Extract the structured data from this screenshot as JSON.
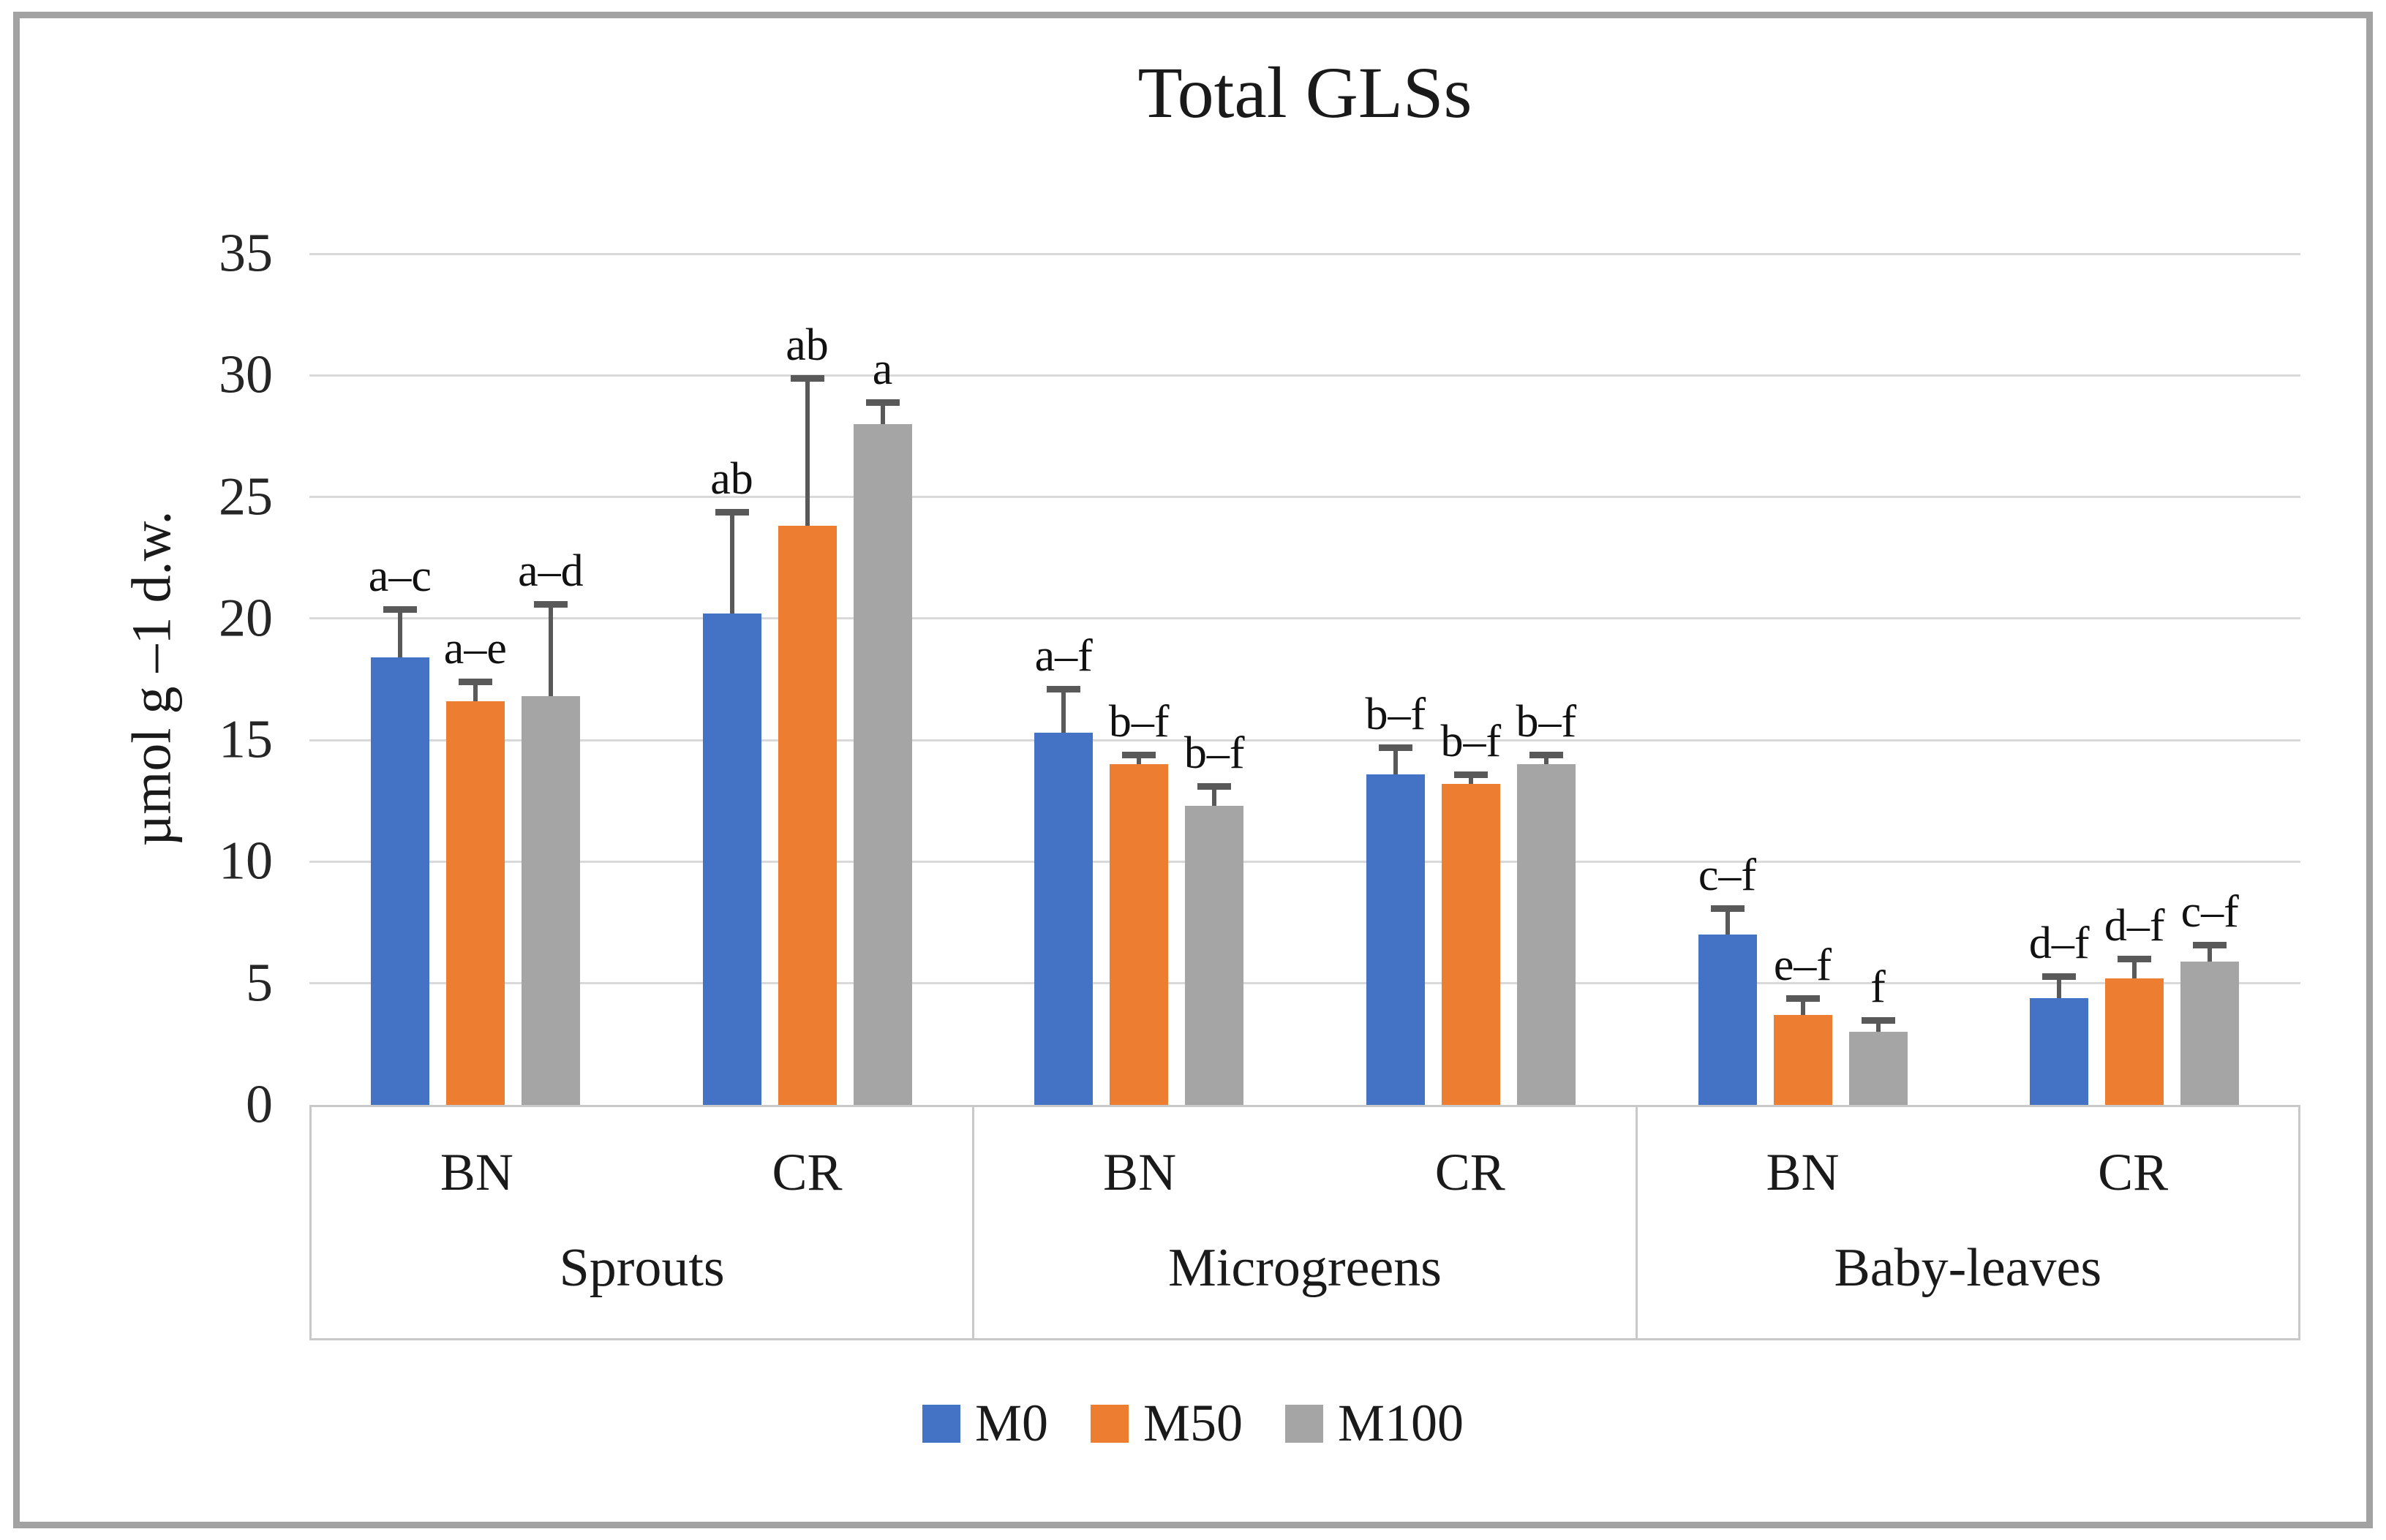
{
  "figure": {
    "frame_color": "#a2a2a2",
    "background": "#ffffff",
    "gridline_color": "#d9d9d9",
    "axis_box_color": "#c9c9c9",
    "error_bar_color": "#595959"
  },
  "chart_data": {
    "type": "bar",
    "title": "Total GLSs",
    "xlabel": "",
    "ylabel": "µmol g –1 d.w.",
    "ylim": [
      0,
      35
    ],
    "yticks": [
      0,
      5,
      10,
      15,
      20,
      25,
      30,
      35
    ],
    "grid": true,
    "legend_position": "bottom",
    "series": [
      {
        "name": "M0",
        "color": "#4472C4"
      },
      {
        "name": "M50",
        "color": "#ED7D31"
      },
      {
        "name": "M100",
        "color": "#A5A5A5"
      }
    ],
    "groups": [
      {
        "label": "Sprouts",
        "clusters": [
          {
            "label": "BN",
            "bars": [
              {
                "series": "M0",
                "value": 18.4,
                "error": 2.0,
                "letter": "a–c"
              },
              {
                "series": "M50",
                "value": 16.6,
                "error": 0.8,
                "letter": "a–e"
              },
              {
                "series": "M100",
                "value": 16.8,
                "error": 3.8,
                "letter": "a–d"
              }
            ]
          },
          {
            "label": "CR",
            "bars": [
              {
                "series": "M0",
                "value": 20.2,
                "error": 4.2,
                "letter": "ab"
              },
              {
                "series": "M50",
                "value": 23.8,
                "error": 6.1,
                "letter": "ab"
              },
              {
                "series": "M100",
                "value": 28.0,
                "error": 0.9,
                "letter": "a"
              }
            ]
          }
        ]
      },
      {
        "label": "Microgreens",
        "clusters": [
          {
            "label": "BN",
            "bars": [
              {
                "series": "M0",
                "value": 15.3,
                "error": 1.8,
                "letter": "a–f"
              },
              {
                "series": "M50",
                "value": 14.0,
                "error": 0.4,
                "letter": "b–f"
              },
              {
                "series": "M100",
                "value": 12.3,
                "error": 0.8,
                "letter": "b–f"
              }
            ]
          },
          {
            "label": "CR",
            "bars": [
              {
                "series": "M0",
                "value": 13.6,
                "error": 1.1,
                "letter": "b–f"
              },
              {
                "series": "M50",
                "value": 13.2,
                "error": 0.4,
                "letter": "b–f"
              },
              {
                "series": "M100",
                "value": 14.0,
                "error": 0.4,
                "letter": "b–f"
              }
            ]
          }
        ]
      },
      {
        "label": "Baby-leaves",
        "clusters": [
          {
            "label": "BN",
            "bars": [
              {
                "series": "M0",
                "value": 7.0,
                "error": 1.1,
                "letter": "c–f"
              },
              {
                "series": "M50",
                "value": 3.7,
                "error": 0.7,
                "letter": "e–f"
              },
              {
                "series": "M100",
                "value": 3.0,
                "error": 0.5,
                "letter": "f"
              }
            ]
          },
          {
            "label": "CR",
            "bars": [
              {
                "series": "M0",
                "value": 4.4,
                "error": 0.9,
                "letter": "d–f"
              },
              {
                "series": "M50",
                "value": 5.2,
                "error": 0.8,
                "letter": "d–f"
              },
              {
                "series": "M100",
                "value": 5.9,
                "error": 0.7,
                "letter": "c–f"
              }
            ]
          }
        ]
      }
    ]
  },
  "legend": {
    "items": [
      {
        "label": "M0",
        "color": "#4472C4"
      },
      {
        "label": "M50",
        "color": "#ED7D31"
      },
      {
        "label": "M100",
        "color": "#A5A5A5"
      }
    ]
  }
}
